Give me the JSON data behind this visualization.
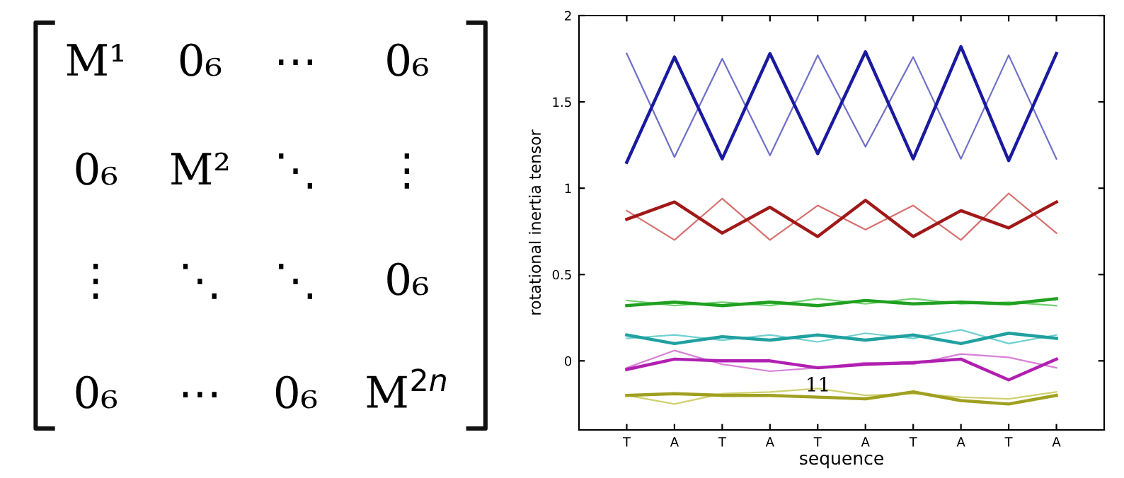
{
  "chart_data": [
    {
      "type": "other",
      "annotations": [
        "M¹",
        "0₆",
        "⋯",
        "0₆",
        "0₆",
        "M²",
        "⋱",
        "⋮",
        "⋮",
        "⋱",
        "⋱",
        "0₆",
        "0₆",
        "⋯",
        "0₆",
        "M$^{2n}$"
      ]
    },
    {
      "type": "line",
      "xlabel": "sequence",
      "ylabel": "rotational inertia tensor",
      "categories": [
        "T",
        "A",
        "T",
        "A",
        "T",
        "A",
        "T",
        "A",
        "T",
        "A"
      ],
      "ylim": [
        -0.4,
        2
      ],
      "yticks": [
        0,
        0.5,
        1,
        1.5,
        2
      ],
      "grid": false,
      "legend": false,
      "marker": "none",
      "line_style": "solid",
      "annotations": [
        "11"
      ],
      "series": [
        {
          "color": "#7070c8",
          "values": [
            1.78,
            1.18,
            1.75,
            1.19,
            1.77,
            1.24,
            1.76,
            1.17,
            1.77,
            1.17
          ]
        },
        {
          "color": "#1a1aa0",
          "values": [
            1.15,
            1.76,
            1.17,
            1.78,
            1.2,
            1.79,
            1.17,
            1.82,
            1.16,
            1.78
          ]
        },
        {
          "color": "#d87070",
          "values": [
            0.87,
            0.7,
            0.94,
            0.7,
            0.9,
            0.76,
            0.9,
            0.7,
            0.97,
            0.74
          ]
        },
        {
          "color": "#a01818",
          "values": [
            0.82,
            0.92,
            0.74,
            0.89,
            0.72,
            0.93,
            0.72,
            0.87,
            0.77,
            0.92
          ]
        },
        {
          "color": "#70d070",
          "values": [
            0.35,
            0.32,
            0.34,
            0.32,
            0.36,
            0.33,
            0.36,
            0.33,
            0.34,
            0.32
          ]
        },
        {
          "color": "#20a020",
          "values": [
            0.32,
            0.34,
            0.32,
            0.34,
            0.32,
            0.35,
            0.33,
            0.34,
            0.33,
            0.36
          ]
        },
        {
          "color": "#70d0d0",
          "values": [
            0.13,
            0.15,
            0.12,
            0.15,
            0.11,
            0.16,
            0.13,
            0.18,
            0.1,
            0.15
          ]
        },
        {
          "color": "#20a0a0",
          "values": [
            0.15,
            0.1,
            0.14,
            0.12,
            0.15,
            0.12,
            0.15,
            0.1,
            0.16,
            0.13
          ]
        },
        {
          "color": "#d880d8",
          "values": [
            -0.04,
            0.06,
            -0.02,
            -0.06,
            -0.04,
            -0.01,
            -0.02,
            0.04,
            0.02,
            -0.04
          ]
        },
        {
          "color": "#b020b0",
          "values": [
            -0.05,
            0.01,
            0,
            0,
            -0.04,
            -0.02,
            -0.01,
            0.01,
            -0.11,
            0.01
          ]
        },
        {
          "color": "#d0d070",
          "values": [
            -0.2,
            -0.25,
            -0.19,
            -0.18,
            -0.16,
            -0.2,
            -0.19,
            -0.21,
            -0.22,
            -0.18
          ]
        },
        {
          "color": "#a0a020",
          "values": [
            -0.2,
            -0.19,
            -0.2,
            -0.2,
            -0.21,
            -0.22,
            -0.18,
            -0.23,
            -0.25,
            -0.2
          ]
        }
      ]
    }
  ]
}
